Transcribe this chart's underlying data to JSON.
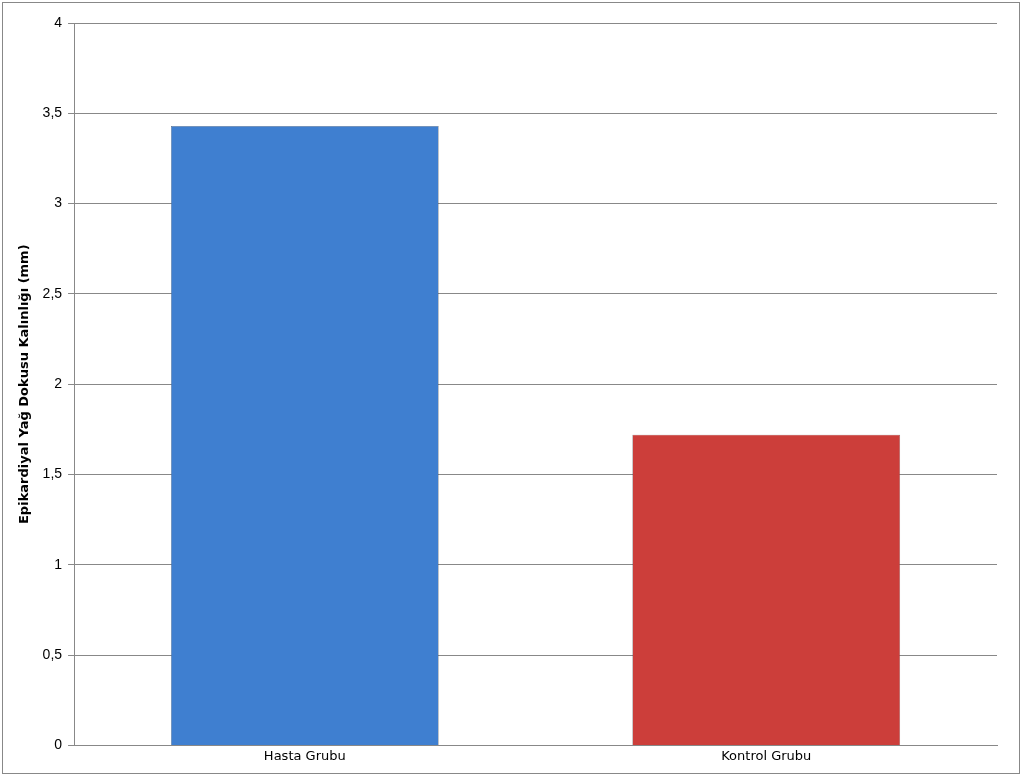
{
  "chart_data": {
    "type": "bar",
    "ylabel": "Epikardiyal Yağ Dokusu Kalınlığı (mm)",
    "categories": [
      "Hasta Grubu",
      "Kontrol Grubu"
    ],
    "values": [
      3.43,
      1.72
    ],
    "colors": [
      "#3f7fd0",
      "#cc3e3a"
    ],
    "ylim": [
      0,
      4
    ],
    "yticks": [
      0,
      {
        "value": 0.5,
        "label": "0,5"
      },
      1,
      {
        "value": 1.5,
        "label": "1,5"
      },
      2,
      {
        "value": 2.5,
        "label": "2,5"
      },
      3,
      {
        "value": 3.5,
        "label": "3,5"
      },
      4
    ],
    "grid": "y",
    "legend": false
  }
}
